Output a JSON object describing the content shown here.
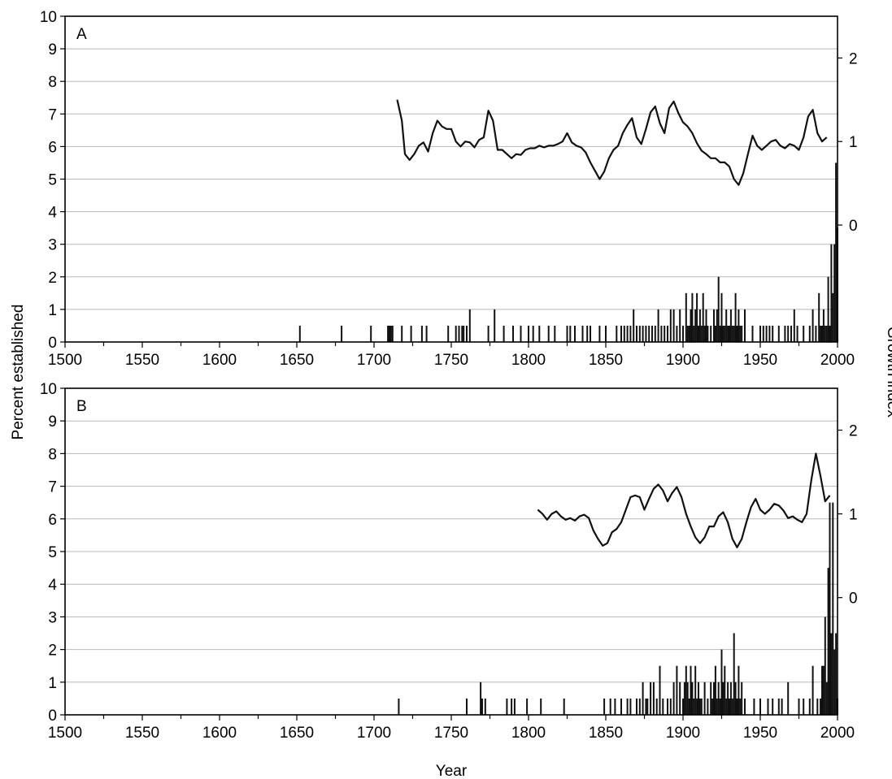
{
  "ylabel_left": "Percent established",
  "ylabel_right": "Growth index",
  "xlabel": "Year",
  "chart_data": [
    {
      "type": "bar+line",
      "panel_label": "A",
      "xlim": [
        1500,
        2000
      ],
      "ylim_left": [
        0,
        10
      ],
      "ylim_right": [
        -1.4,
        2.5
      ],
      "x_ticks": [
        1500,
        1550,
        1600,
        1650,
        1700,
        1750,
        1800,
        1850,
        1900,
        1950,
        2000
      ],
      "y_ticks_left": [
        0,
        1,
        2,
        3,
        4,
        5,
        6,
        7,
        8,
        9,
        10
      ],
      "y_ticks_right": [
        0,
        1,
        2
      ],
      "grid": true,
      "bars": {
        "name": "Percent established",
        "x": [
          1652,
          1679,
          1698,
          1709,
          1710,
          1711,
          1712,
          1718,
          1724,
          1731,
          1734,
          1748,
          1753,
          1755,
          1757,
          1758,
          1760,
          1762,
          1774,
          1778,
          1784,
          1790,
          1795,
          1800,
          1803,
          1807,
          1813,
          1817,
          1825,
          1827,
          1830,
          1835,
          1838,
          1840,
          1846,
          1850,
          1857,
          1860,
          1862,
          1864,
          1866,
          1868,
          1870,
          1872,
          1874,
          1876,
          1878,
          1880,
          1882,
          1884,
          1886,
          1888,
          1890,
          1892,
          1894,
          1896,
          1898,
          1900,
          1902,
          1903,
          1904,
          1905,
          1906,
          1907,
          1908,
          1909,
          1910,
          1911,
          1912,
          1913,
          1914,
          1915,
          1916,
          1918,
          1920,
          1921,
          1922,
          1923,
          1924,
          1925,
          1926,
          1927,
          1928,
          1929,
          1930,
          1931,
          1932,
          1933,
          1934,
          1935,
          1936,
          1937,
          1938,
          1940,
          1945,
          1950,
          1952,
          1954,
          1956,
          1958,
          1962,
          1966,
          1968,
          1970,
          1972,
          1974,
          1978,
          1982,
          1984,
          1986,
          1988,
          1989,
          1990,
          1991,
          1992,
          1993,
          1994,
          1995,
          1996,
          1997,
          1998,
          1999,
          2000
        ],
        "values": [
          0.5,
          0.5,
          0.5,
          0.5,
          0.5,
          0.5,
          0.5,
          0.5,
          0.5,
          0.5,
          0.5,
          0.5,
          0.5,
          0.5,
          0.5,
          0.5,
          0.5,
          1,
          0.5,
          1,
          0.5,
          0.5,
          0.5,
          0.5,
          0.5,
          0.5,
          0.5,
          0.5,
          0.5,
          0.5,
          0.5,
          0.5,
          0.5,
          0.5,
          0.5,
          0.5,
          0.5,
          0.5,
          0.5,
          0.5,
          0.5,
          1,
          0.5,
          0.5,
          0.5,
          0.5,
          0.5,
          0.5,
          0.5,
          1,
          0.5,
          0.5,
          0.5,
          1,
          1,
          0.5,
          1,
          0.5,
          1.5,
          0.5,
          0.5,
          1,
          1.5,
          0.5,
          1,
          1.5,
          0.5,
          1,
          0.5,
          1.5,
          0.5,
          1,
          0.5,
          0.5,
          1,
          0.5,
          1,
          2,
          0.5,
          1.5,
          0.5,
          0.5,
          1,
          0.5,
          0.5,
          1,
          0.5,
          0.5,
          1.5,
          0.5,
          1,
          0.5,
          0.5,
          1,
          0.5,
          0.5,
          0.5,
          0.5,
          0.5,
          0.5,
          0.5,
          0.5,
          0.5,
          0.5,
          1,
          0.5,
          0.5,
          0.5,
          1,
          0.5,
          1.5,
          0.5,
          0.5,
          1,
          0.5,
          0.5,
          2,
          0.5,
          3,
          1.5,
          3,
          5.5,
          3.5
        ]
      },
      "line": {
        "name": "Growth index",
        "x": [
          1715,
          1718,
          1720,
          1723,
          1726,
          1729,
          1732,
          1735,
          1738,
          1741,
          1744,
          1747,
          1750,
          1753,
          1756,
          1759,
          1762,
          1765,
          1768,
          1771,
          1774,
          1777,
          1780,
          1783,
          1786,
          1789,
          1792,
          1795,
          1798,
          1801,
          1804,
          1807,
          1810,
          1813,
          1816,
          1819,
          1822,
          1825,
          1828,
          1831,
          1834,
          1837,
          1840,
          1843,
          1846,
          1849,
          1852,
          1855,
          1858,
          1861,
          1864,
          1867,
          1870,
          1873,
          1876,
          1879,
          1882,
          1885,
          1888,
          1891,
          1894,
          1897,
          1900,
          1903,
          1906,
          1909,
          1912,
          1915,
          1918,
          1921,
          1924,
          1927,
          1930,
          1933,
          1936,
          1939,
          1942,
          1945,
          1948,
          1951,
          1954,
          1957,
          1960,
          1963,
          1966,
          1969,
          1972,
          1975,
          1978,
          1981,
          1984,
          1987,
          1990,
          1993
        ],
        "values": [
          1.5,
          1.25,
          0.85,
          0.78,
          0.85,
          0.95,
          0.99,
          0.88,
          1.1,
          1.25,
          1.18,
          1.15,
          1.15,
          1.0,
          0.94,
          1.0,
          0.99,
          0.93,
          1.02,
          1.05,
          1.37,
          1.25,
          0.9,
          0.9,
          0.85,
          0.8,
          0.85,
          0.84,
          0.9,
          0.92,
          0.92,
          0.95,
          0.93,
          0.95,
          0.95,
          0.97,
          1.0,
          1.1,
          0.99,
          0.95,
          0.93,
          0.87,
          0.75,
          0.65,
          0.55,
          0.64,
          0.8,
          0.9,
          0.95,
          1.1,
          1.2,
          1.28,
          1.05,
          0.97,
          1.15,
          1.35,
          1.42,
          1.22,
          1.1,
          1.4,
          1.48,
          1.34,
          1.23,
          1.18,
          1.1,
          0.98,
          0.89,
          0.85,
          0.8,
          0.8,
          0.75,
          0.75,
          0.7,
          0.55,
          0.48,
          0.62,
          0.85,
          1.07,
          0.95,
          0.9,
          0.95,
          1.0,
          1.02,
          0.95,
          0.92,
          0.97,
          0.95,
          0.9,
          1.05,
          1.3,
          1.38,
          1.1,
          1.0,
          1.05
        ]
      }
    },
    {
      "type": "bar+line",
      "panel_label": "B",
      "xlim": [
        1500,
        2000
      ],
      "ylim_left": [
        0,
        10
      ],
      "ylim_right": [
        -1.4,
        2.5
      ],
      "x_ticks": [
        1500,
        1550,
        1600,
        1650,
        1700,
        1750,
        1800,
        1850,
        1900,
        1950,
        2000
      ],
      "y_ticks_left": [
        0,
        1,
        2,
        3,
        4,
        5,
        6,
        7,
        8,
        9,
        10
      ],
      "y_ticks_right": [
        0,
        1,
        2
      ],
      "grid": true,
      "bars": {
        "name": "Percent established",
        "x": [
          1716,
          1760,
          1769,
          1770,
          1772,
          1786,
          1789,
          1791,
          1799,
          1808,
          1823,
          1849,
          1853,
          1856,
          1860,
          1864,
          1866,
          1870,
          1872,
          1874,
          1876,
          1877,
          1879,
          1881,
          1883,
          1885,
          1887,
          1890,
          1892,
          1894,
          1896,
          1898,
          1900,
          1901,
          1902,
          1903,
          1904,
          1905,
          1906,
          1907,
          1908,
          1909,
          1910,
          1911,
          1912,
          1914,
          1916,
          1918,
          1919,
          1920,
          1921,
          1922,
          1923,
          1924,
          1925,
          1926,
          1927,
          1928,
          1929,
          1930,
          1931,
          1932,
          1933,
          1934,
          1935,
          1936,
          1937,
          1938,
          1940,
          1946,
          1950,
          1955,
          1958,
          1962,
          1964,
          1968,
          1975,
          1978,
          1982,
          1984,
          1987,
          1989,
          1990,
          1991,
          1992,
          1993,
          1994,
          1995,
          1996,
          1997,
          1998,
          1999,
          2000
        ],
        "values": [
          0.5,
          0.5,
          1,
          0.5,
          0.5,
          0.5,
          0.5,
          0.5,
          0.5,
          0.5,
          0.5,
          0.5,
          0.5,
          0.5,
          0.5,
          0.5,
          0.5,
          0.5,
          0.5,
          1,
          0.5,
          0.5,
          1,
          1,
          0.5,
          1.5,
          0.5,
          0.5,
          0.5,
          1,
          1.5,
          1,
          0.5,
          1,
          1.5,
          1,
          0.5,
          1.5,
          1,
          0.5,
          1.5,
          0.5,
          1,
          0.5,
          0.5,
          1,
          0.5,
          1,
          0.5,
          1,
          1.5,
          0.5,
          1,
          0.5,
          2,
          1,
          1.5,
          0.5,
          1,
          0.5,
          1,
          0.5,
          2.5,
          1,
          0.5,
          1.5,
          0.5,
          1,
          0.5,
          0.5,
          0.5,
          0.5,
          0.5,
          0.5,
          0.5,
          1,
          0.5,
          0.5,
          0.5,
          1.5,
          0.5,
          0.5,
          1.5,
          1.5,
          3,
          1,
          4.5,
          6.5,
          2.5,
          6.5,
          2,
          2.5,
          0.5
        ]
      },
      "line": {
        "name": "Growth index",
        "x": [
          1806,
          1809,
          1812,
          1815,
          1818,
          1821,
          1824,
          1827,
          1830,
          1833,
          1836,
          1839,
          1842,
          1845,
          1848,
          1851,
          1854,
          1857,
          1860,
          1863,
          1866,
          1869,
          1872,
          1875,
          1878,
          1881,
          1884,
          1887,
          1890,
          1893,
          1896,
          1899,
          1902,
          1905,
          1908,
          1911,
          1914,
          1917,
          1920,
          1923,
          1926,
          1929,
          1932,
          1935,
          1938,
          1941,
          1944,
          1947,
          1950,
          1953,
          1956,
          1959,
          1962,
          1965,
          1968,
          1971,
          1974,
          1977,
          1980,
          1983,
          1986,
          1989,
          1992,
          1995
        ],
        "values": [
          1.05,
          1.0,
          0.93,
          1.0,
          1.03,
          0.97,
          0.93,
          0.95,
          0.92,
          0.97,
          0.99,
          0.95,
          0.8,
          0.7,
          0.62,
          0.65,
          0.78,
          0.82,
          0.9,
          1.05,
          1.2,
          1.22,
          1.2,
          1.05,
          1.18,
          1.3,
          1.35,
          1.28,
          1.15,
          1.25,
          1.32,
          1.2,
          1.0,
          0.85,
          0.72,
          0.65,
          0.72,
          0.85,
          0.85,
          0.97,
          1.02,
          0.9,
          0.7,
          0.6,
          0.7,
          0.9,
          1.08,
          1.18,
          1.05,
          1.0,
          1.05,
          1.12,
          1.1,
          1.04,
          0.95,
          0.97,
          0.93,
          0.9,
          1.0,
          1.4,
          1.72,
          1.45,
          1.15,
          1.22
        ]
      }
    }
  ]
}
